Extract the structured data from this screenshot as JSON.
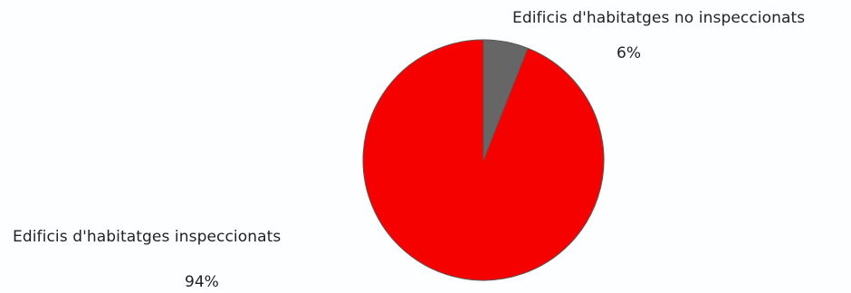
{
  "chart_data": {
    "type": "pie",
    "slices": [
      {
        "label": "Edificis d'habitatges no inspeccionats",
        "value": 6,
        "value_label": "6%",
        "color": "#666666"
      },
      {
        "label": "Edificis d'habitatges inspeccionats",
        "value": 94,
        "value_label": "94%",
        "color": "#f50200"
      }
    ],
    "start": "12 o'clock",
    "direction": "clockwise",
    "legend": "none",
    "data_labels": "outside"
  }
}
